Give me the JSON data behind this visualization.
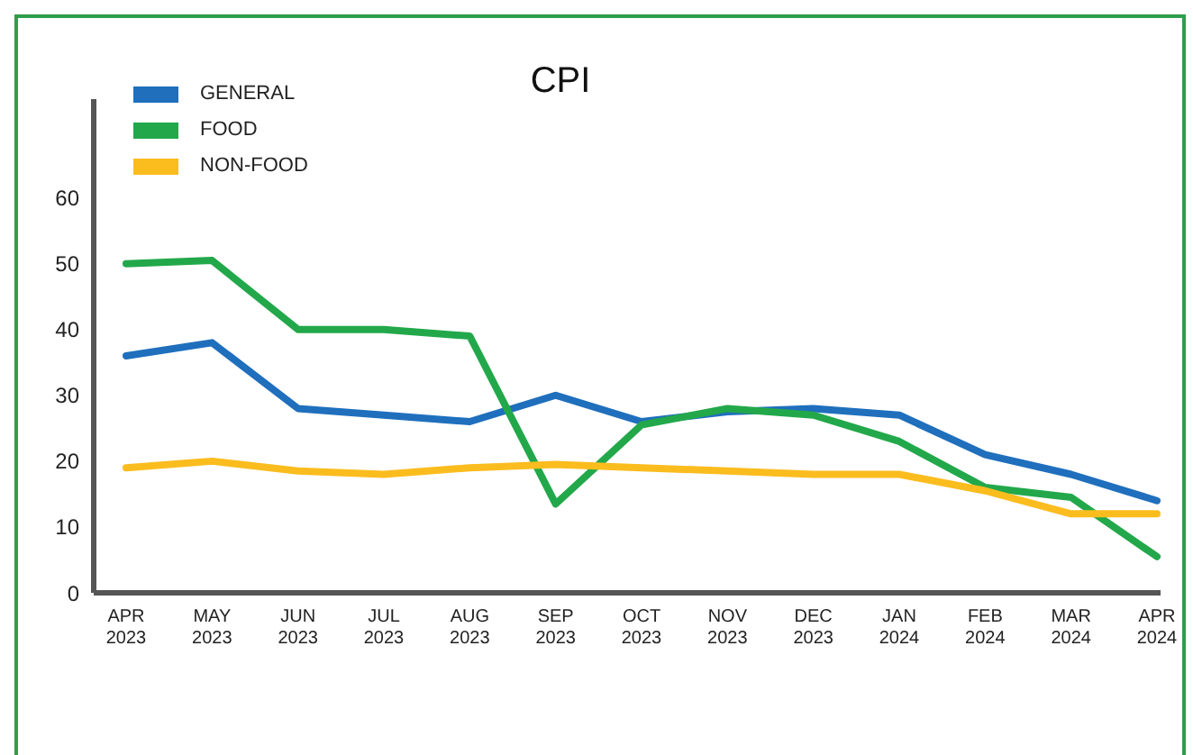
{
  "chart_data": {
    "type": "line",
    "title": "CPI",
    "categories": [
      "APR 2023",
      "MAY 2023",
      "JUN 2023",
      "JUL 2023",
      "AUG 2023",
      "SEP 2023",
      "OCT 2023",
      "NOV 2023",
      "DEC 2023",
      "JAN 2024",
      "FEB 2024",
      "MAR 2024",
      "APR 2024"
    ],
    "series": [
      {
        "name": "GENERAL",
        "color": "#1f6fbd",
        "values": [
          36,
          38,
          28,
          27,
          26,
          30,
          26,
          27.5,
          28,
          27,
          21,
          18,
          14
        ]
      },
      {
        "name": "FOOD",
        "color": "#22a84a",
        "values": [
          50,
          50.5,
          40,
          40,
          39,
          13.5,
          25.5,
          28,
          27,
          23,
          16,
          14.5,
          5.5
        ]
      },
      {
        "name": "NON-FOOD",
        "color": "#fbbc1e",
        "values": [
          19,
          20,
          18.5,
          18,
          19,
          19.5,
          19,
          18.5,
          18,
          18,
          15.5,
          12,
          12
        ]
      }
    ],
    "ylim": [
      0,
      75
    ],
    "yticks": [
      0,
      10,
      20,
      30,
      40,
      50,
      60
    ],
    "legend": "top left",
    "line_style": "solid"
  }
}
